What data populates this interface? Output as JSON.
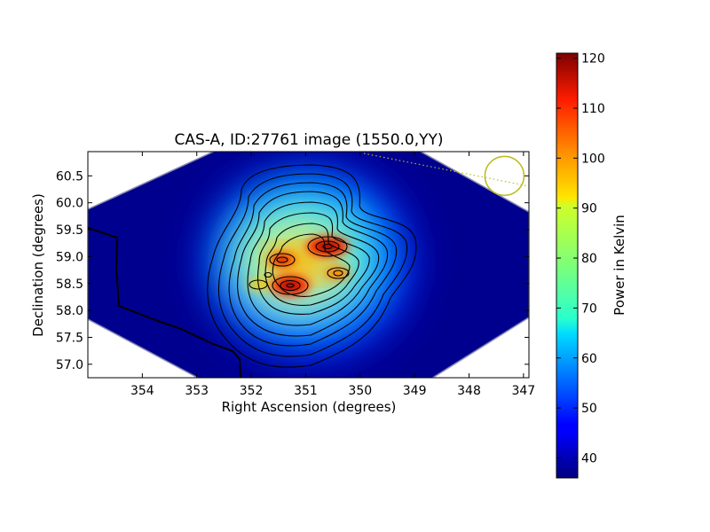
{
  "chart_data": {
    "type": "heatmap",
    "title": "CAS-A, ID:27761 image (1550.0,YY)",
    "xlabel": "Right Ascension (degrees)",
    "ylabel": "Declination (degrees)",
    "xlim": [
      355.0,
      346.9
    ],
    "ylim": [
      56.75,
      60.95
    ],
    "x_ticks": [
      354,
      353,
      352,
      351,
      350,
      349,
      348,
      347
    ],
    "y_ticks": [
      57.0,
      57.5,
      58.0,
      58.5,
      59.0,
      59.5,
      60.0,
      60.5
    ],
    "grid": false,
    "colormap": "jet",
    "colorbar": {
      "label": "Power in Kelvin",
      "min": 36,
      "max": 121,
      "ticks": [
        40,
        50,
        60,
        70,
        80,
        90,
        100,
        110,
        120
      ]
    },
    "peaks": [
      {
        "ra": 350.55,
        "dec": 59.2,
        "value": 121
      },
      {
        "ra": 351.05,
        "dec": 58.48,
        "value": 118
      },
      {
        "ra": 351.45,
        "dec": 58.95,
        "value": 108
      },
      {
        "ra": 350.05,
        "dec": 58.7,
        "value": 100
      },
      {
        "ra": 351.7,
        "dec": 58.5,
        "value": 92
      }
    ],
    "background_level": 36,
    "beam": {
      "ra": 347.35,
      "dec": 60.5,
      "radius_deg": 0.35,
      "color": "#bcbc1e"
    }
  }
}
